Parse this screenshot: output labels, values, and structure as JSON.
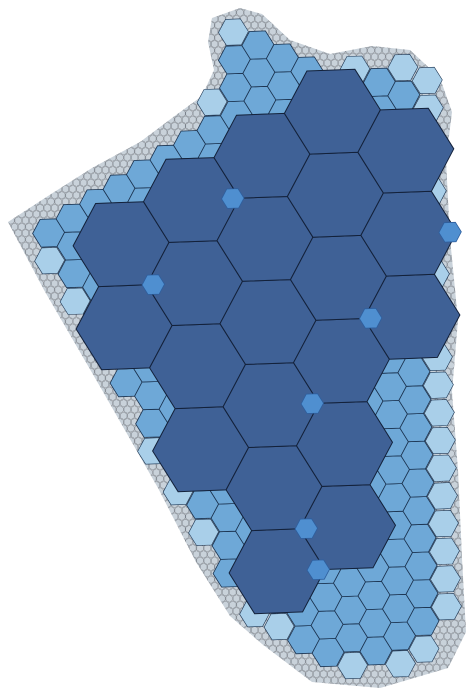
{
  "palette": {
    "background": "#ffffff",
    "large_hex": "#3f6196",
    "large_edge": "#13213a",
    "medium_hex": "#6ea8d7",
    "medium_edge": "#1b3350",
    "bevel": "#4f8fd0",
    "bevel_dark": "#2e5f9e",
    "small_hex": "#a9cfe9",
    "tiny_hex": "#c9d2da",
    "tiny_edge": "#6f7780"
  },
  "tiers": [
    "large-hex",
    "medium-hex",
    "small-hex",
    "tiny-hex"
  ]
}
